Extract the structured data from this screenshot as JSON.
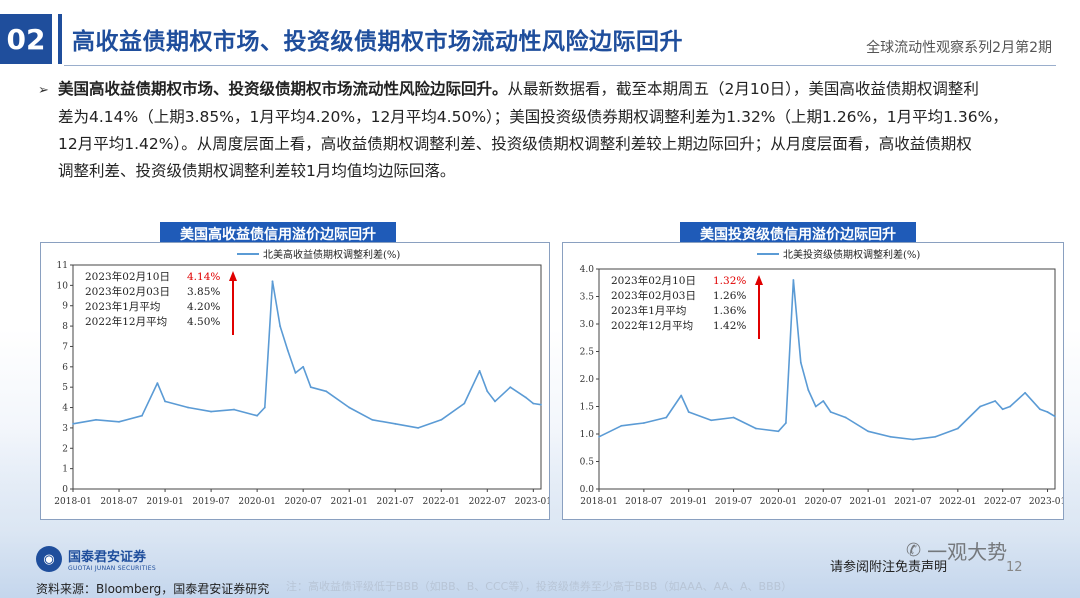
{
  "header": {
    "section_number": "02",
    "title": "高收益债期权市场、投资级债期权市场流动性风险边际回升",
    "series_label": "全球流动性观察系列2月第2期"
  },
  "paragraph": {
    "bold_lead": "美国高收益债期权市场、投资级债期权市场流动性风险边际回升。",
    "line1_rest": "从最新数据看，截至本期周五（2月10日），美国高收益债期权调整利",
    "line2": "差为4.14%（上期3.85%，1月平均4.20%，12月平均4.50%）；美国投资级债券期权调整利差为1.32%（上期1.26%，1月平均1.36%，",
    "line3": "12月平均1.42%）。从周度层面上看，高收益债期权调整利差、投资级债期权调整利差较上期边际回升；从月度层面看，高收益债期权",
    "line4": "调整利差、投资级债期权调整利差较1月均值均边际回落。"
  },
  "charts": [
    {
      "banner": "美国高收益债信用溢价边际回升",
      "legend": "北美高收益债期权调整利差(%)",
      "annotations": [
        {
          "label": "2023年02月10日",
          "value": "4.14%",
          "highlight": true
        },
        {
          "label": "2023年02月03日",
          "value": "3.85%",
          "highlight": false
        },
        {
          "label": "2023年1月平均",
          "value": "4.20%",
          "highlight": false
        },
        {
          "label": "2022年12月平均",
          "value": "4.50%",
          "highlight": false
        }
      ]
    },
    {
      "banner": "美国投资级债信用溢价边际回升",
      "legend": "北美投资级债期权调整利差(%)",
      "annotations": [
        {
          "label": "2023年02月10日",
          "value": "1.32%",
          "highlight": true
        },
        {
          "label": "2023年02月03日",
          "value": "1.26%",
          "highlight": false
        },
        {
          "label": "2023年1月平均",
          "value": "1.36%",
          "highlight": false
        },
        {
          "label": "2022年12月平均",
          "value": "1.42%",
          "highlight": false
        }
      ]
    }
  ],
  "chart_data": [
    {
      "type": "line",
      "series": [
        {
          "name": "北美高收益债期权调整利差(%)",
          "color": "#5b9bd5",
          "x": [
            "2018-01",
            "2018-04",
            "2018-07",
            "2018-10",
            "2018-12",
            "2019-01",
            "2019-04",
            "2019-07",
            "2019-10",
            "2020-01",
            "2020-02",
            "2020-03",
            "2020-04",
            "2020-05",
            "2020-06",
            "2020-07",
            "2020-08",
            "2020-10",
            "2021-01",
            "2021-04",
            "2021-07",
            "2021-10",
            "2022-01",
            "2022-04",
            "2022-06",
            "2022-07",
            "2022-08",
            "2022-10",
            "2022-12",
            "2023-01",
            "2023-02"
          ],
          "values": [
            3.2,
            3.4,
            3.3,
            3.6,
            5.2,
            4.3,
            4.0,
            3.8,
            3.9,
            3.6,
            4.0,
            10.2,
            8.0,
            6.8,
            5.7,
            6.0,
            5.0,
            4.8,
            4.0,
            3.4,
            3.2,
            3.0,
            3.4,
            4.2,
            5.8,
            4.8,
            4.3,
            5.0,
            4.5,
            4.2,
            4.14
          ]
        }
      ],
      "x_ticks": [
        "2018-01",
        "2018-07",
        "2019-01",
        "2019-07",
        "2020-01",
        "2020-07",
        "2021-01",
        "2021-07",
        "2022-01",
        "2022-07",
        "2023-01"
      ],
      "y_ticks": [
        "0",
        "1",
        "2",
        "3",
        "4",
        "5",
        "6",
        "7",
        "8",
        "9",
        "10",
        "11"
      ],
      "ylim": [
        0,
        11
      ],
      "xlim": [
        "2018-01",
        "2023-02"
      ],
      "grid": false
    },
    {
      "type": "line",
      "series": [
        {
          "name": "北美投资级债期权调整利差(%)",
          "color": "#5b9bd5",
          "x": [
            "2018-01",
            "2018-04",
            "2018-07",
            "2018-10",
            "2018-12",
            "2019-01",
            "2019-04",
            "2019-07",
            "2019-10",
            "2020-01",
            "2020-02",
            "2020-03",
            "2020-04",
            "2020-05",
            "2020-06",
            "2020-07",
            "2020-08",
            "2020-10",
            "2021-01",
            "2021-04",
            "2021-07",
            "2021-10",
            "2022-01",
            "2022-04",
            "2022-06",
            "2022-07",
            "2022-08",
            "2022-10",
            "2022-12",
            "2023-01",
            "2023-02"
          ],
          "values": [
            0.95,
            1.15,
            1.2,
            1.3,
            1.7,
            1.4,
            1.25,
            1.3,
            1.1,
            1.05,
            1.2,
            3.8,
            2.3,
            1.8,
            1.5,
            1.6,
            1.4,
            1.3,
            1.05,
            0.95,
            0.9,
            0.95,
            1.1,
            1.5,
            1.6,
            1.45,
            1.5,
            1.75,
            1.45,
            1.4,
            1.32
          ]
        }
      ],
      "x_ticks": [
        "2018-01",
        "2018-07",
        "2019-01",
        "2019-07",
        "2020-01",
        "2020-07",
        "2021-01",
        "2021-07",
        "2022-01",
        "2022-07",
        "2023-01"
      ],
      "y_ticks": [
        "0.0",
        "0.5",
        "1.0",
        "1.5",
        "2.0",
        "2.5",
        "3.0",
        "3.5",
        "4.0"
      ],
      "ylim": [
        0,
        4
      ],
      "xlim": [
        "2018-01",
        "2023-02"
      ],
      "grid": false
    }
  ],
  "footer": {
    "logo_cn": "国泰君安证券",
    "logo_en": "GUOTAI JUNAN SECURITIES",
    "source": "资料来源：Bloomberg，国泰君安证券研究",
    "note": "注：高收益债评级低于BBB（如BB、B、CCC等），投资级债券至少高于BBB（如AAA、AA、A、BBB）",
    "disclaimer": "请参阅附注免责声明",
    "page": "12",
    "watermark": "一观大势"
  }
}
